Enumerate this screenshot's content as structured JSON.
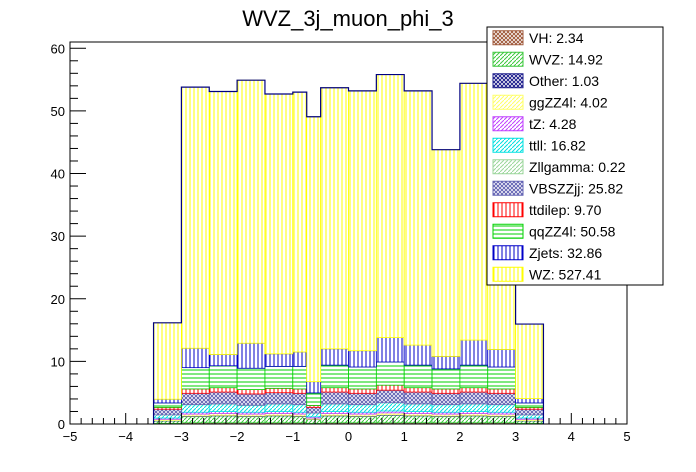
{
  "chart_data": {
    "type": "bar",
    "title": "WVZ_3j_muon_phi_3",
    "xlabel": "",
    "ylabel": "",
    "xlim": [
      -5,
      5
    ],
    "ylim": [
      0,
      61
    ],
    "stacked": true,
    "bin_edges": [
      -3.5,
      -3.0,
      -2.5,
      -2.0,
      -1.5,
      -1.0,
      -0.75,
      -0.5,
      0.0,
      0.5,
      1.0,
      1.5,
      2.0,
      2.5,
      3.0,
      3.5
    ],
    "x_ticks": [
      -5,
      -4,
      -3,
      -2,
      -1,
      0,
      1,
      2,
      3,
      4,
      5
    ],
    "y_ticks": [
      0,
      10,
      20,
      30,
      40,
      50,
      60
    ],
    "legend_position": "top-right",
    "series": [
      {
        "name": "VH: 2.34",
        "color": "#a05a3c",
        "hatch": "cross",
        "values": [
          0.1,
          0.2,
          0.2,
          0.2,
          0.2,
          0.2,
          0.1,
          0.2,
          0.2,
          0.2,
          0.2,
          0.2,
          0.2,
          0.2,
          0.1
        ]
      },
      {
        "name": "WVZ: 14.92",
        "color": "#3cc83c",
        "hatch": "diag",
        "values": [
          0.4,
          1.0,
          1.1,
          1.0,
          1.1,
          1.0,
          0.6,
          1.1,
          1.0,
          1.2,
          1.1,
          1.0,
          1.1,
          1.0,
          0.4
        ]
      },
      {
        "name": "Other: 1.03",
        "color": "#1e1e8c",
        "hatch": "cross",
        "values": [
          0.05,
          0.08,
          0.08,
          0.08,
          0.08,
          0.08,
          0.05,
          0.08,
          0.08,
          0.08,
          0.08,
          0.08,
          0.08,
          0.08,
          0.05
        ]
      },
      {
        "name": "ggZZ4l: 4.02",
        "color": "#ffff66",
        "hatch": "diag",
        "values": [
          0.2,
          0.3,
          0.3,
          0.3,
          0.3,
          0.3,
          0.2,
          0.3,
          0.3,
          0.3,
          0.3,
          0.3,
          0.3,
          0.3,
          0.2
        ]
      },
      {
        "name": "tZ: 4.28",
        "color": "#c040ff",
        "hatch": "diag",
        "values": [
          0.2,
          0.3,
          0.3,
          0.3,
          0.3,
          0.3,
          0.2,
          0.3,
          0.3,
          0.3,
          0.3,
          0.3,
          0.3,
          0.3,
          0.2
        ]
      },
      {
        "name": "ttll: 16.82",
        "color": "#00e0e0",
        "hatch": "diag",
        "values": [
          0.5,
          1.2,
          1.2,
          1.1,
          1.2,
          1.2,
          0.6,
          1.2,
          1.2,
          1.3,
          1.2,
          1.2,
          1.2,
          1.2,
          0.5
        ]
      },
      {
        "name": "Zllgamma: 0.22",
        "color": "#9bd69b",
        "hatch": "diag",
        "values": [
          0.01,
          0.02,
          0.02,
          0.02,
          0.02,
          0.02,
          0.01,
          0.02,
          0.02,
          0.02,
          0.02,
          0.02,
          0.02,
          0.02,
          0.01
        ]
      },
      {
        "name": "VBSZZjj: 25.82",
        "color": "#6464b4",
        "hatch": "cross",
        "values": [
          0.9,
          1.8,
          1.9,
          1.8,
          1.8,
          1.8,
          0.9,
          1.9,
          1.8,
          2.0,
          1.9,
          1.8,
          1.9,
          1.8,
          0.9
        ]
      },
      {
        "name": "ttdilep: 9.70",
        "color": "#ff0000",
        "hatch": "vert",
        "values": [
          0.3,
          0.7,
          0.7,
          0.7,
          0.7,
          0.7,
          0.3,
          0.7,
          0.7,
          0.8,
          0.7,
          0.7,
          0.7,
          0.7,
          0.3
        ]
      },
      {
        "name": "qqZZ4l: 50.58",
        "color": "#00d200",
        "hatch": "horiz",
        "values": [
          0.7,
          3.4,
          3.5,
          3.4,
          3.5,
          3.6,
          2.0,
          3.6,
          3.5,
          3.7,
          3.6,
          3.2,
          3.6,
          3.5,
          0.7
        ]
      },
      {
        "name": "Zjets: 32.86",
        "color": "#0000c8",
        "hatch": "vert",
        "values": [
          0.6,
          3.1,
          1.8,
          4.0,
          2.0,
          2.3,
          1.8,
          2.6,
          2.6,
          3.9,
          3.2,
          2.0,
          4.0,
          2.8,
          0.7
        ]
      },
      {
        "name": "WZ: 527.41",
        "color": "#ffff00",
        "hatch": "vert",
        "values": [
          12.2,
          41.7,
          42.0,
          42.0,
          41.5,
          41.5,
          42.3,
          41.7,
          41.5,
          42.0,
          40.6,
          33.0,
          41.0,
          42.5,
          11.9
        ]
      }
    ]
  }
}
